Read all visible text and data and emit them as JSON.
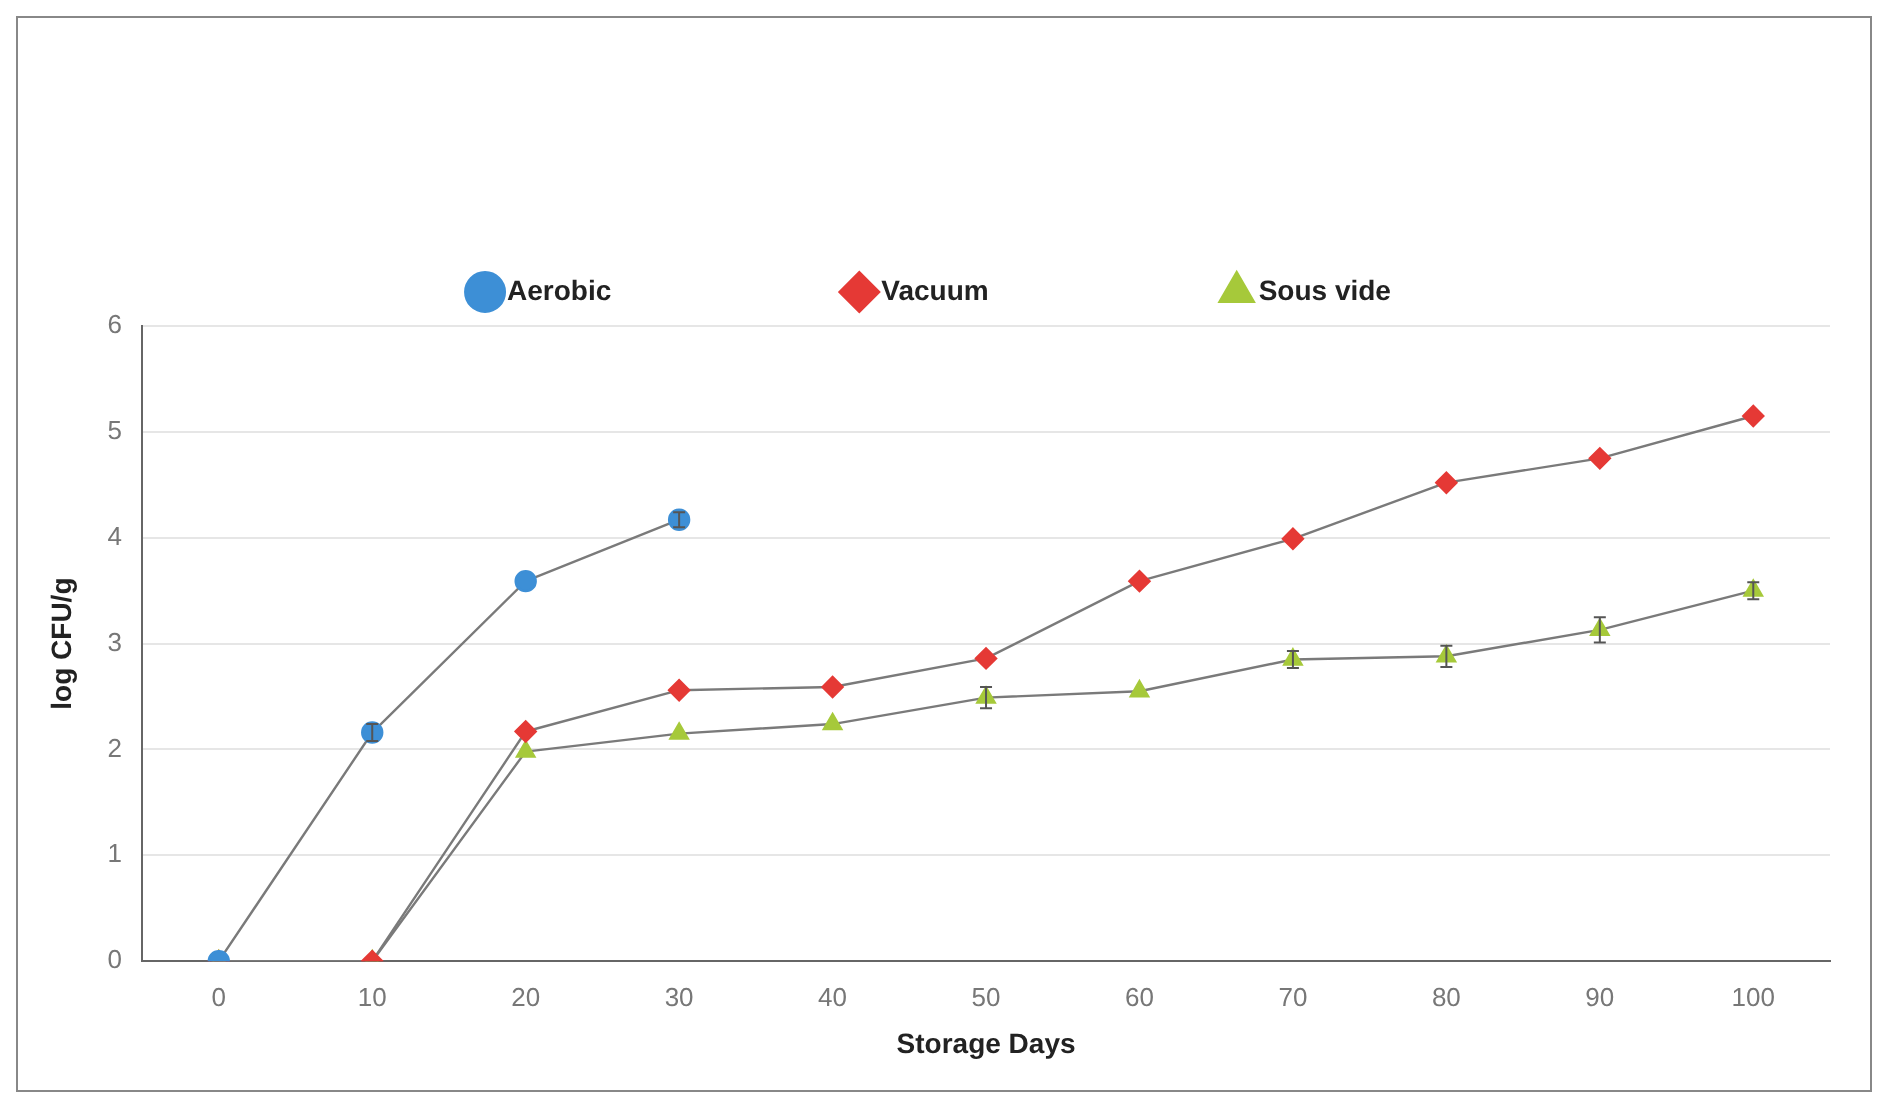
{
  "chart_data": {
    "type": "line",
    "xlabel": "Storage Days",
    "ylabel": "log CFU/g",
    "categories": [
      "0",
      "10",
      "20",
      "30",
      "40",
      "50",
      "60",
      "70",
      "80",
      "90",
      "100"
    ],
    "series": [
      {
        "name": "Aerobic",
        "color": "#3d8fd6",
        "marker": "circle",
        "values": [
          0,
          2.16,
          3.59,
          4.17,
          null,
          null,
          null,
          null,
          null,
          null,
          null
        ],
        "errors": [
          null,
          0.08,
          null,
          0.07,
          null,
          null,
          null,
          null,
          null,
          null,
          null
        ]
      },
      {
        "name": "Vacuum",
        "color": "#e53935",
        "marker": "diamond",
        "values": [
          0,
          0,
          2.17,
          2.56,
          2.59,
          2.86,
          3.59,
          3.99,
          4.52,
          4.75,
          5.15
        ]
      },
      {
        "name": "Sous vide",
        "color": "#a6c93a",
        "marker": "triangle",
        "values": [
          0,
          0,
          1.98,
          2.15,
          2.24,
          2.49,
          2.55,
          2.85,
          2.88,
          3.13,
          3.5
        ],
        "errors": [
          null,
          null,
          null,
          null,
          null,
          0.1,
          null,
          0.08,
          0.1,
          0.12,
          0.08
        ]
      }
    ],
    "ylim": [
      0,
      6
    ],
    "yticks": [
      0,
      1,
      2,
      3,
      4,
      5,
      6
    ],
    "grid": "y",
    "legend": "top"
  }
}
